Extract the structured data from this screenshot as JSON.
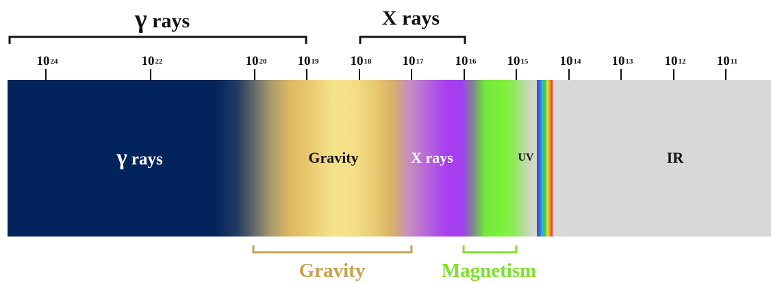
{
  "brackets_top": [
    {
      "label": "γ rays",
      "glyph": "γ",
      "rest": " rays"
    },
    {
      "label": "X rays"
    }
  ],
  "ticks": [
    {
      "base": "10",
      "exp": "24"
    },
    {
      "base": "10",
      "exp": "22"
    },
    {
      "base": "10",
      "exp": "20"
    },
    {
      "base": "10",
      "exp": "19"
    },
    {
      "base": "10",
      "exp": "18"
    },
    {
      "base": "10",
      "exp": "17"
    },
    {
      "base": "10",
      "exp": "16"
    },
    {
      "base": "10",
      "exp": "15"
    },
    {
      "base": "10",
      "exp": "14"
    },
    {
      "base": "10",
      "exp": "13"
    },
    {
      "base": "10",
      "exp": "12"
    },
    {
      "base": "10",
      "exp": "11"
    }
  ],
  "band": {
    "regions": [
      {
        "label": "γ rays",
        "glyph": "γ",
        "rest": " rays",
        "color": "#ffffff"
      },
      {
        "label": "Gravity",
        "color": "#111111"
      },
      {
        "label": "X rays",
        "color": "#ffffff"
      },
      {
        "label": "UV",
        "color": "#111111"
      },
      {
        "label": "IR",
        "color": "#111111"
      }
    ]
  },
  "brackets_bottom": [
    {
      "label": "Gravity",
      "color": "#c8a04f"
    },
    {
      "label": "Magnetism",
      "color": "#7fe02a"
    }
  ],
  "colors": {
    "gamma": "#03235c",
    "gravity": "#f5e28a",
    "gravity_dark": "#ddb860",
    "xray": "#a33ff0",
    "magnetism": "#7df23a",
    "ir": "#d8d8d8"
  }
}
